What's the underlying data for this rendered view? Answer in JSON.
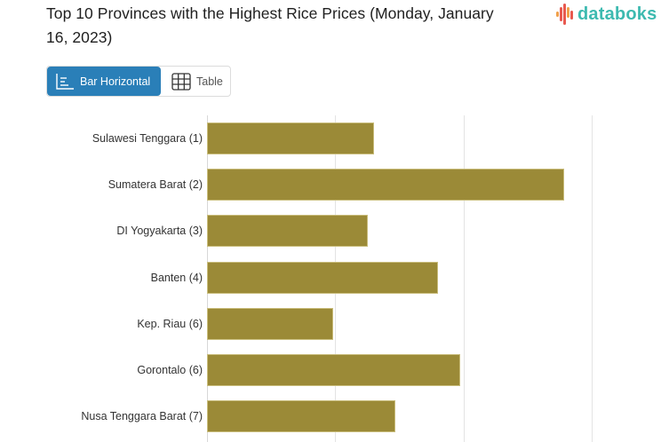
{
  "header": {
    "title": "Top 10 Provinces with the Highest Rice Prices (Monday, January 16, 2023)",
    "logo_text": "databoks",
    "logo_icon": "bar-wave-icon"
  },
  "view_toggle": {
    "bar_label": "Bar Horizontal",
    "bar_icon": "bar-chart-icon",
    "table_label": "Table",
    "table_icon": "table-grid-icon",
    "active": "Bar Horizontal"
  },
  "colors": {
    "bar": "#9b8a37",
    "accent_button": "#2a7fb8",
    "logo_text": "#3dbab0",
    "logo_bars": [
      "#f0a04b",
      "#e8594f",
      "#e8594f",
      "#f0a04b",
      "#e8594f"
    ]
  },
  "chart_data": {
    "type": "bar",
    "orientation": "horizontal",
    "title": "Top 10 Provinces with the Highest Rice Prices (Monday, January 16, 2023)",
    "xlabel": "",
    "ylabel": "",
    "x_tick_labels_visible": false,
    "grid": true,
    "gridline_units": "relative (1 unit = one gridline interval; no tick labels visible)",
    "xlim": [
      0,
      3
    ],
    "categories": [
      "Sulawesi Tenggara (1)",
      "Sumatera Barat (2)",
      "DI Yogyakarta (3)",
      "Banten (4)",
      "Kep. Riau (6)",
      "Gorontalo (6)",
      "Nusa Tenggara Barat (7)"
    ],
    "values": [
      1.3,
      2.78,
      1.25,
      1.8,
      0.98,
      1.97,
      1.47
    ],
    "legend": null
  }
}
